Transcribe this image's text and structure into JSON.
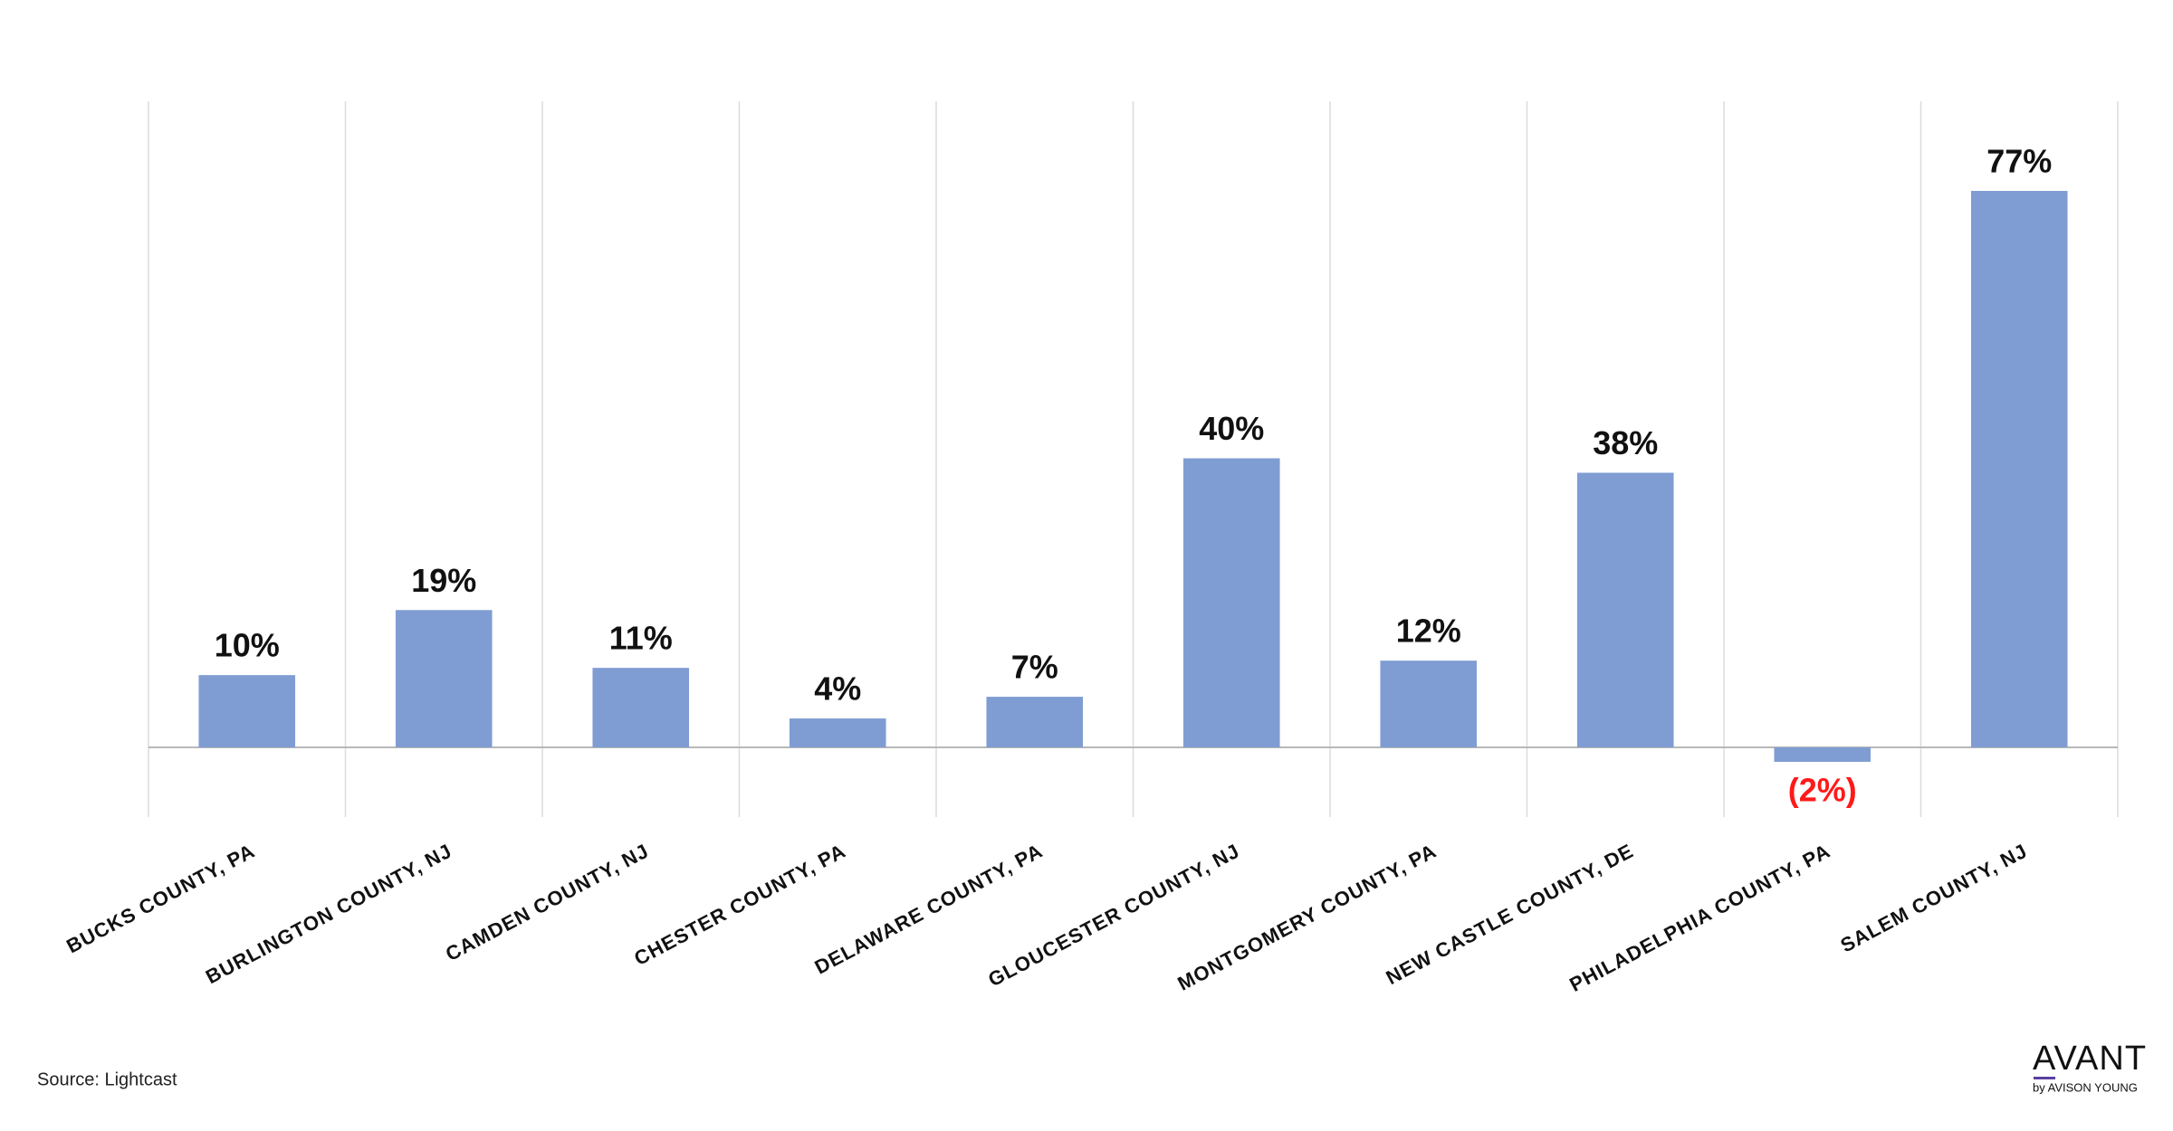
{
  "chart_data": {
    "type": "bar",
    "categories": [
      "BUCKS COUNTY, PA",
      "BURLINGTON COUNTY, NJ",
      "CAMDEN COUNTY, NJ",
      "CHESTER COUNTY, PA",
      "DELAWARE COUNTY, PA",
      "GLOUCESTER COUNTY, NJ",
      "MONTGOMERY COUNTY, PA",
      "NEW CASTLE COUNTY, DE",
      "PHILADELPHIA COUNTY, PA",
      "SALEM COUNTY, NJ"
    ],
    "values": [
      10,
      19,
      11,
      4,
      7,
      40,
      12,
      38,
      -2,
      77
    ],
    "value_labels": [
      "10%",
      "19%",
      "11%",
      "4%",
      "7%",
      "40%",
      "12%",
      "38%",
      "(2%)",
      "77%"
    ],
    "color": "#7f9dd3",
    "label_color": "#111111",
    "negative_label_color": "#ff1a1a",
    "grid": true
  },
  "footer": {
    "source": "Source: Lightcast",
    "brand": "AVANT",
    "brand_sub": "by AVISON YOUNG"
  }
}
